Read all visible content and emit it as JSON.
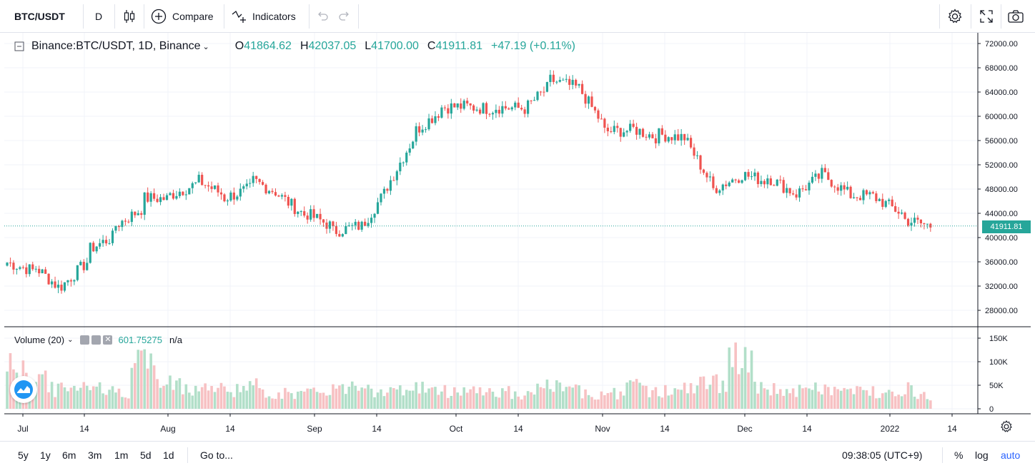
{
  "toolbar": {
    "symbol": "BTC/USDT",
    "interval": "D",
    "compare_label": "Compare",
    "indicators_label": "Indicators"
  },
  "legend": {
    "title": "Binance:BTC/USDT, 1D, Binance",
    "o_label": "O",
    "o_value": "41864.62",
    "h_label": "H",
    "h_value": "42037.05",
    "l_label": "L",
    "l_value": "41700.00",
    "c_label": "C",
    "c_value": "41911.81",
    "change": "+47.19 (+0.11%)"
  },
  "volume_legend": {
    "label": "Volume (20)",
    "value": "601.75275",
    "ma": "n/a"
  },
  "last_price": "41911.81",
  "bottombar": {
    "ranges": [
      "5y",
      "1y",
      "6m",
      "3m",
      "1m",
      "5d",
      "1d"
    ],
    "goto_label": "Go to...",
    "clock": "09:38:05 (UTC+9)",
    "percent_label": "%",
    "log_label": "log",
    "auto_label": "auto"
  },
  "colors": {
    "up": "#26a69a",
    "down": "#ef5350",
    "up_vol": "#b2dfc9",
    "down_vol": "#f7c1c3",
    "accent": "#2962ff"
  },
  "chart_data": {
    "type": "candlestick",
    "price_axis": [
      "72000.00",
      "68000.00",
      "64000.00",
      "60000.00",
      "56000.00",
      "52000.00",
      "48000.00",
      "44000.00",
      "40000.00",
      "36000.00",
      "32000.00",
      "28000.00"
    ],
    "volume_axis": [
      "150K",
      "100K",
      "50K",
      "0"
    ],
    "x_labels": [
      "Jul",
      "14",
      "Aug",
      "14",
      "Sep",
      "14",
      "Oct",
      "14",
      "Nov",
      "14",
      "Dec",
      "14",
      "2022",
      "14"
    ],
    "anchors": [
      [
        35073,
        35890
      ],
      [
        32700,
        35270
      ],
      [
        30000,
        32000
      ],
      [
        32000,
        38000
      ],
      [
        36500,
        42000
      ],
      [
        41000,
        46500
      ],
      [
        45000,
        47000
      ],
      [
        47500,
        49500
      ],
      [
        48000,
        46500
      ],
      [
        45000,
        49500
      ],
      [
        48000,
        47000
      ],
      [
        42500,
        44000
      ],
      [
        43500,
        41000
      ],
      [
        43000,
        41500
      ],
      [
        47000,
        48500
      ],
      [
        55000,
        57500
      ],
      [
        60000,
        61500
      ],
      [
        62000,
        61500
      ],
      [
        60500,
        61500
      ],
      [
        62000,
        61000
      ],
      [
        63000,
        66000
      ],
      [
        64000,
        65000
      ],
      [
        60000,
        57500
      ],
      [
        57000,
        58000
      ],
      [
        55000,
        57000
      ],
      [
        57500,
        56000
      ],
      [
        49000,
        48000
      ],
      [
        49500,
        50500
      ],
      [
        47500,
        50000
      ],
      [
        48000,
        47000
      ],
      [
        50000,
        50500
      ],
      [
        47500,
        47000
      ],
      [
        47500,
        46500
      ],
      [
        45800,
        43000
      ],
      [
        41900,
        41911
      ]
    ],
    "volumes": [
      95,
      80,
      45,
      60,
      40,
      110,
      55,
      50,
      45,
      50,
      35,
      35,
      45,
      60,
      40,
      50,
      40,
      45,
      40,
      30,
      50,
      40,
      35,
      50,
      40,
      45,
      60,
      110,
      45,
      40,
      45,
      40,
      40,
      45,
      30
    ]
  }
}
